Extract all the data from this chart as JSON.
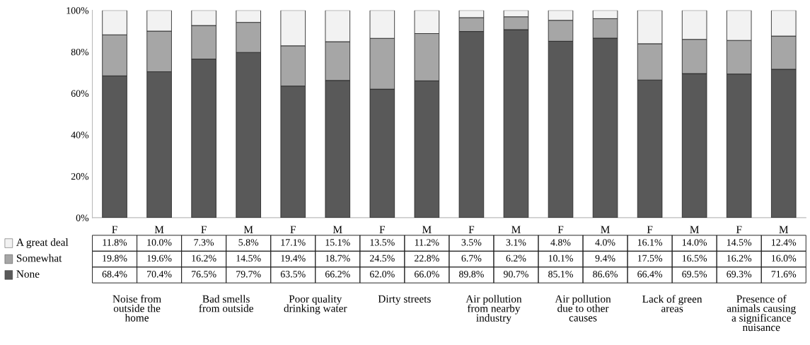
{
  "chart_data": {
    "type": "bar",
    "stacked": true,
    "categories": [
      "F",
      "M",
      "F",
      "M",
      "F",
      "M",
      "F",
      "M",
      "F",
      "M",
      "F",
      "M",
      "F",
      "M",
      "F",
      "M"
    ],
    "series": [
      {
        "name": "None",
        "color": "#595959",
        "values": [
          68.4,
          70.4,
          76.5,
          79.7,
          63.5,
          66.2,
          62.0,
          66.0,
          89.8,
          90.7,
          85.1,
          86.6,
          66.4,
          69.5,
          69.3,
          71.6
        ],
        "value_labels": [
          "68.4%",
          "70.4%",
          "76.5%",
          "79.7%",
          "63.5%",
          "66.2%",
          "62.0%",
          "66.0%",
          "89.8%",
          "90.7%",
          "85.1%",
          "86.6%",
          "66.4%",
          "69.5%",
          "69.3%",
          "71.6%"
        ]
      },
      {
        "name": "Somewhat",
        "color": "#a6a6a6",
        "values": [
          19.8,
          19.6,
          16.2,
          14.5,
          19.4,
          18.7,
          24.5,
          22.8,
          6.7,
          6.2,
          10.1,
          9.4,
          17.5,
          16.5,
          16.2,
          16.0
        ],
        "value_labels": [
          "19.8%",
          "19.6%",
          "16.2%",
          "14.5%",
          "19.4%",
          "18.7%",
          "24.5%",
          "22.8%",
          "6.7%",
          "6.2%",
          "10.1%",
          "9.4%",
          "17.5%",
          "16.5%",
          "16.2%",
          "16.0%"
        ]
      },
      {
        "name": "A great deal",
        "color": "#f2f2f2",
        "values": [
          11.8,
          10.0,
          7.3,
          5.8,
          17.1,
          15.1,
          13.5,
          11.2,
          3.5,
          3.1,
          4.8,
          4.0,
          16.1,
          14.0,
          14.5,
          12.4
        ],
        "value_labels": [
          "11.8%",
          "10.0%",
          "7.3%",
          "5.8%",
          "17.1%",
          "15.1%",
          "13.5%",
          "11.2%",
          "3.5%",
          "3.1%",
          "4.8%",
          "4.0%",
          "16.1%",
          "14.0%",
          "14.5%",
          "12.4%"
        ]
      }
    ],
    "ylim": [
      0,
      100
    ],
    "yticks": [
      {
        "value": 0,
        "label": "0%"
      },
      {
        "value": 20,
        "label": "20%"
      },
      {
        "value": 40,
        "label": "40%"
      },
      {
        "value": 60,
        "label": "60%"
      },
      {
        "value": 80,
        "label": "80%"
      },
      {
        "value": 100,
        "label": "100%"
      }
    ],
    "legend": "bottom left",
    "annotations": [
      "Noise from\noutside the\nhome",
      "Bad smells\nfrom outside",
      "Poor quality\ndrinking water",
      "Dirty streets",
      "Air pollution\nfrom nearby\nindustry",
      "Air pollution\ndue to other\ncauses",
      "Lack of green\nareas",
      "Presence of\nanimals causing\na significance\nnuisance"
    ]
  }
}
